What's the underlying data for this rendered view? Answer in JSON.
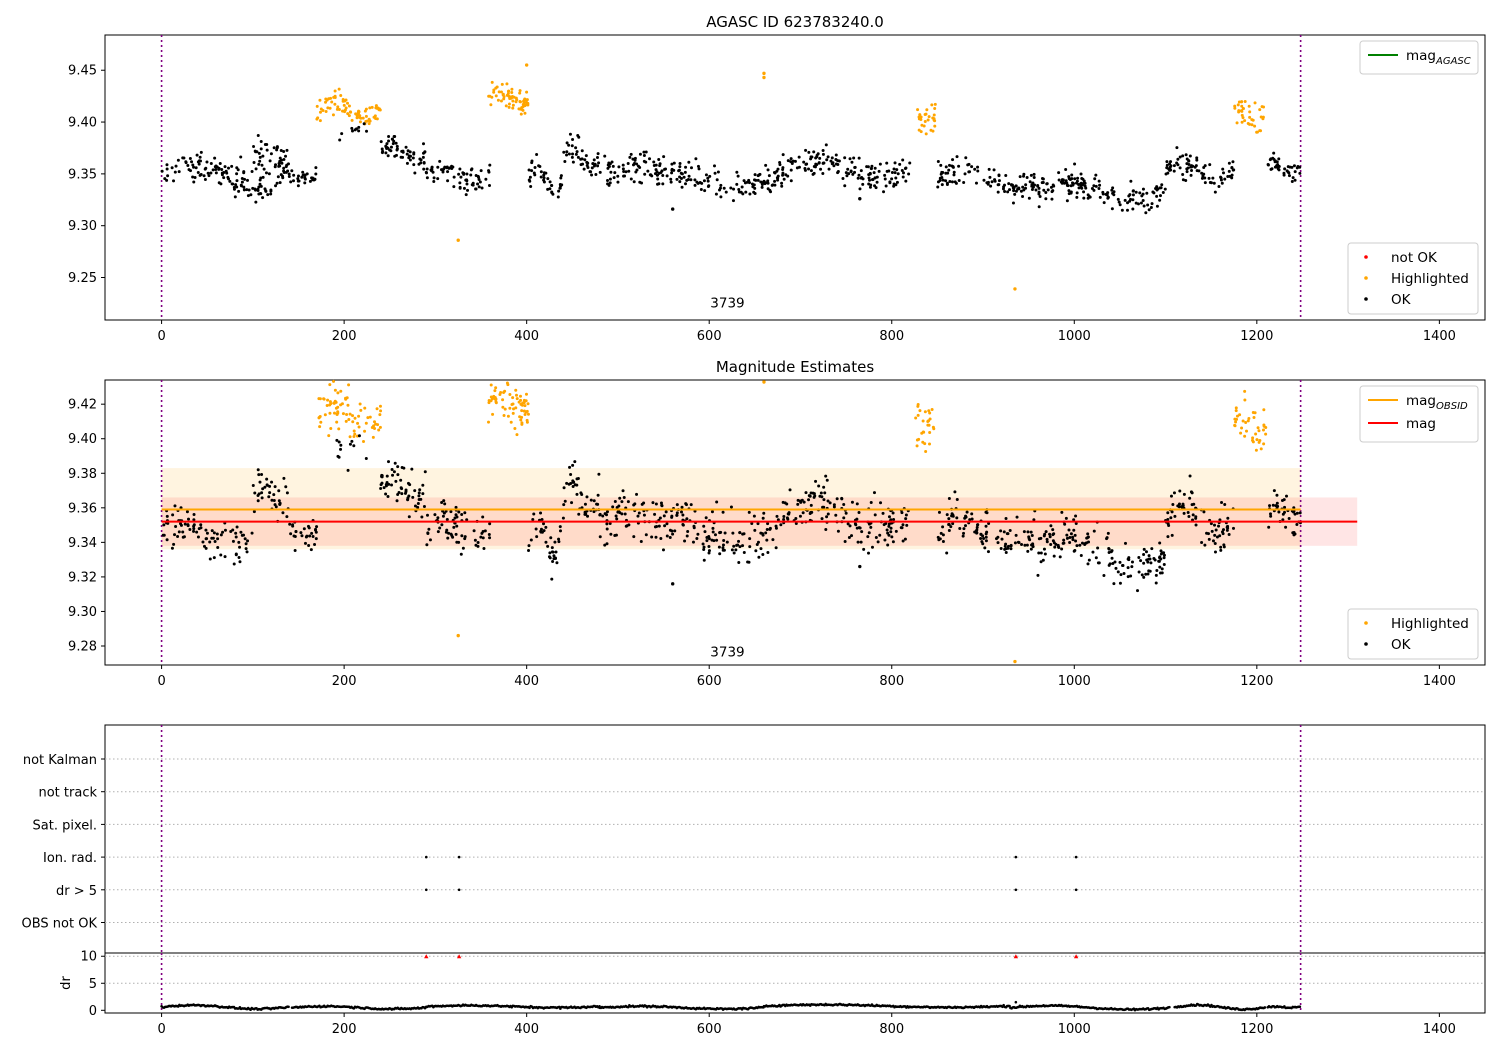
{
  "chart_data": [
    {
      "id": "top",
      "type": "scatter",
      "title": "AGASC ID 623783240.0",
      "xlim": [
        -62,
        1450
      ],
      "ylim": [
        9.209,
        9.484
      ],
      "xticks": [
        0,
        200,
        400,
        600,
        800,
        1000,
        1200,
        1400
      ],
      "yticks": [
        9.25,
        9.3,
        9.35,
        9.4,
        9.45
      ],
      "vlines": [
        0,
        1248
      ],
      "annotation": {
        "text": "3739",
        "x": 620,
        "y": 9.221
      },
      "legend_lines": [
        {
          "name": "mag_AGASC",
          "label": "mag",
          "sub": "AGASC",
          "color": "#008000"
        }
      ],
      "legend_points": [
        {
          "name": "not OK",
          "color": "#ff0000"
        },
        {
          "name": "Highlighted",
          "color": "#ffa500"
        },
        {
          "name": "OK",
          "color": "#000000"
        }
      ],
      "segments": [
        {
          "x0": 0,
          "x1": 135,
          "base": 9.347,
          "amp": 0.01,
          "noise": 0.008,
          "n": 110,
          "series": "OK"
        },
        {
          "x0": 40,
          "x1": 140,
          "base": 9.355,
          "amp": 0.0,
          "noise": 0.006,
          "n": 40,
          "series": "OK"
        },
        {
          "x0": 100,
          "x1": 140,
          "base": 9.372,
          "amp": 0.004,
          "noise": 0.007,
          "n": 30,
          "series": "OK"
        },
        {
          "x0": 138,
          "x1": 170,
          "base": 9.346,
          "amp": 0.0,
          "noise": 0.006,
          "n": 30,
          "series": "OK"
        },
        {
          "x0": 170,
          "x1": 240,
          "base": 9.412,
          "amp": 0.006,
          "noise": 0.007,
          "n": 80,
          "series": "Highlighted"
        },
        {
          "x0": 195,
          "x1": 225,
          "base": 9.393,
          "amp": 0.0,
          "noise": 0.006,
          "n": 10,
          "series": "OK"
        },
        {
          "x0": 240,
          "x1": 290,
          "base": 9.371,
          "amp": 0.006,
          "noise": 0.007,
          "n": 60,
          "series": "OK"
        },
        {
          "x0": 290,
          "x1": 360,
          "base": 9.348,
          "amp": 0.006,
          "noise": 0.008,
          "n": 70,
          "series": "OK"
        },
        {
          "x0": 358,
          "x1": 402,
          "base": 9.423,
          "amp": 0.006,
          "noise": 0.007,
          "n": 70,
          "series": "Highlighted"
        },
        {
          "x0": 402,
          "x1": 440,
          "base": 9.343,
          "amp": 0.01,
          "noise": 0.008,
          "n": 40,
          "series": "OK"
        },
        {
          "x0": 440,
          "x1": 480,
          "base": 9.365,
          "amp": 0.01,
          "noise": 0.008,
          "n": 45,
          "series": "OK"
        },
        {
          "x0": 480,
          "x1": 680,
          "base": 9.348,
          "amp": 0.007,
          "noise": 0.009,
          "n": 200,
          "series": "OK"
        },
        {
          "x0": 680,
          "x1": 820,
          "base": 9.355,
          "amp": 0.008,
          "noise": 0.009,
          "n": 150,
          "series": "OK"
        },
        {
          "x0": 825,
          "x1": 848,
          "base": 9.405,
          "amp": 0.0,
          "noise": 0.01,
          "n": 28,
          "series": "Highlighted"
        },
        {
          "x0": 850,
          "x1": 960,
          "base": 9.345,
          "amp": 0.008,
          "noise": 0.009,
          "n": 110,
          "series": "OK"
        },
        {
          "x0": 960,
          "x1": 1100,
          "base": 9.333,
          "amp": 0.008,
          "noise": 0.008,
          "n": 150,
          "series": "OK"
        },
        {
          "x0": 1100,
          "x1": 1175,
          "base": 9.352,
          "amp": 0.008,
          "noise": 0.008,
          "n": 80,
          "series": "OK"
        },
        {
          "x0": 1175,
          "x1": 1210,
          "base": 9.408,
          "amp": 0.006,
          "noise": 0.008,
          "n": 40,
          "series": "Highlighted"
        },
        {
          "x0": 1210,
          "x1": 1248,
          "base": 9.358,
          "amp": 0.004,
          "noise": 0.006,
          "n": 40,
          "series": "OK"
        }
      ],
      "extra_points": [
        {
          "x": 660,
          "y": 9.447,
          "series": "Highlighted"
        },
        {
          "x": 660,
          "y": 9.443,
          "series": "Highlighted"
        },
        {
          "x": 400,
          "y": 9.455,
          "series": "Highlighted"
        },
        {
          "x": 325,
          "y": 9.286,
          "series": "Highlighted"
        },
        {
          "x": 935,
          "y": 9.239,
          "series": "Highlighted"
        },
        {
          "x": 560,
          "y": 9.316,
          "series": "OK"
        },
        {
          "x": 765,
          "y": 9.326,
          "series": "OK"
        }
      ]
    },
    {
      "id": "mid",
      "type": "scatter",
      "title": "Magnitude Estimates",
      "xlim": [
        -62,
        1450
      ],
      "ylim": [
        9.269,
        9.434
      ],
      "xticks": [
        0,
        200,
        400,
        600,
        800,
        1000,
        1200,
        1400
      ],
      "yticks": [
        9.28,
        9.3,
        9.32,
        9.34,
        9.36,
        9.38,
        9.4,
        9.42
      ],
      "vlines": [
        0,
        1248
      ],
      "annotation": {
        "text": "3739",
        "x": 620,
        "y": 9.274
      },
      "bands": [
        {
          "x0": 0,
          "x1": 1248,
          "y0": 9.336,
          "y1": 9.383,
          "color": "#ffa500",
          "opacity": 0.12
        },
        {
          "x0": 0,
          "x1": 1310,
          "y0": 9.338,
          "y1": 9.366,
          "color": "#ff0000",
          "opacity": 0.1
        }
      ],
      "hlines": [
        {
          "name": "mag_OBSID",
          "x0": 0,
          "x1": 1248,
          "y": 9.359,
          "color": "#ffa500"
        },
        {
          "name": "mag",
          "x0": 0,
          "x1": 1310,
          "y": 9.352,
          "color": "#ff0000"
        }
      ],
      "legend_lines": [
        {
          "name": "mag_OBSID",
          "label": "mag",
          "sub": "OBSID",
          "color": "#ffa500"
        },
        {
          "name": "mag",
          "label": "mag",
          "sub": "",
          "color": "#ff0000"
        }
      ],
      "legend_points": [
        {
          "name": "Highlighted",
          "color": "#ffa500"
        },
        {
          "name": "OK",
          "color": "#000000"
        }
      ],
      "segments": [
        {
          "x0": 0,
          "x1": 100,
          "base": 9.344,
          "amp": 0.006,
          "noise": 0.008,
          "n": 90,
          "series": "OK"
        },
        {
          "x0": 100,
          "x1": 140,
          "base": 9.366,
          "amp": 0.006,
          "noise": 0.008,
          "n": 40,
          "series": "OK"
        },
        {
          "x0": 138,
          "x1": 170,
          "base": 9.344,
          "amp": 0.0,
          "noise": 0.006,
          "n": 30,
          "series": "OK"
        },
        {
          "x0": 170,
          "x1": 240,
          "base": 9.413,
          "amp": 0.006,
          "noise": 0.008,
          "n": 80,
          "series": "Highlighted"
        },
        {
          "x0": 190,
          "x1": 225,
          "base": 9.393,
          "amp": 0.0,
          "noise": 0.007,
          "n": 12,
          "series": "OK"
        },
        {
          "x0": 240,
          "x1": 290,
          "base": 9.372,
          "amp": 0.006,
          "noise": 0.007,
          "n": 60,
          "series": "OK"
        },
        {
          "x0": 290,
          "x1": 360,
          "base": 9.348,
          "amp": 0.006,
          "noise": 0.008,
          "n": 70,
          "series": "OK"
        },
        {
          "x0": 358,
          "x1": 402,
          "base": 9.421,
          "amp": 0.004,
          "noise": 0.008,
          "n": 70,
          "series": "Highlighted"
        },
        {
          "x0": 402,
          "x1": 440,
          "base": 9.342,
          "amp": 0.008,
          "noise": 0.008,
          "n": 40,
          "series": "OK"
        },
        {
          "x0": 440,
          "x1": 480,
          "base": 9.366,
          "amp": 0.01,
          "noise": 0.008,
          "n": 45,
          "series": "OK"
        },
        {
          "x0": 480,
          "x1": 680,
          "base": 9.349,
          "amp": 0.007,
          "noise": 0.009,
          "n": 200,
          "series": "OK"
        },
        {
          "x0": 680,
          "x1": 820,
          "base": 9.356,
          "amp": 0.008,
          "noise": 0.009,
          "n": 150,
          "series": "OK"
        },
        {
          "x0": 825,
          "x1": 848,
          "base": 9.408,
          "amp": 0.0,
          "noise": 0.01,
          "n": 28,
          "series": "Highlighted"
        },
        {
          "x0": 850,
          "x1": 960,
          "base": 9.346,
          "amp": 0.008,
          "noise": 0.009,
          "n": 110,
          "series": "OK"
        },
        {
          "x0": 960,
          "x1": 1100,
          "base": 9.334,
          "amp": 0.008,
          "noise": 0.008,
          "n": 150,
          "series": "OK"
        },
        {
          "x0": 1100,
          "x1": 1175,
          "base": 9.353,
          "amp": 0.008,
          "noise": 0.008,
          "n": 80,
          "series": "OK"
        },
        {
          "x0": 1175,
          "x1": 1210,
          "base": 9.408,
          "amp": 0.006,
          "noise": 0.008,
          "n": 40,
          "series": "Highlighted"
        },
        {
          "x0": 1210,
          "x1": 1248,
          "base": 9.357,
          "amp": 0.004,
          "noise": 0.007,
          "n": 40,
          "series": "OK"
        }
      ],
      "extra_points": [
        {
          "x": 660,
          "y": 9.433,
          "series": "Highlighted"
        },
        {
          "x": 325,
          "y": 9.286,
          "series": "Highlighted"
        },
        {
          "x": 935,
          "y": 9.271,
          "series": "Highlighted"
        },
        {
          "x": 560,
          "y": 9.316,
          "series": "OK"
        },
        {
          "x": 765,
          "y": 9.326,
          "series": "OK"
        }
      ]
    },
    {
      "id": "flags",
      "type": "scatter",
      "xlim": [
        -62,
        1450
      ],
      "categories": [
        "not Kalman",
        "not track",
        "Sat. pixel.",
        "Ion. rad.",
        "dr > 5",
        "OBS not OK"
      ],
      "vlines": [
        0,
        1248
      ],
      "points": [
        {
          "x": 290,
          "category": "Ion. rad."
        },
        {
          "x": 326,
          "category": "Ion. rad."
        },
        {
          "x": 936,
          "category": "Ion. rad."
        },
        {
          "x": 1002,
          "category": "Ion. rad."
        },
        {
          "x": 290,
          "category": "dr > 5"
        },
        {
          "x": 326,
          "category": "dr > 5"
        },
        {
          "x": 936,
          "category": "dr > 5"
        },
        {
          "x": 1002,
          "category": "dr > 5"
        }
      ]
    },
    {
      "id": "dr",
      "type": "line",
      "ylabel": "dr",
      "xlim": [
        -62,
        1450
      ],
      "ylim": [
        -0.5,
        10.6
      ],
      "xticks": [
        0,
        200,
        400,
        600,
        800,
        1000,
        1200,
        1400
      ],
      "yticks": [
        0,
        5,
        10
      ],
      "vlines": [
        0,
        1248
      ],
      "segments": [
        {
          "x0": 0,
          "x1": 140,
          "base": 0.6,
          "amp": 0.35
        },
        {
          "x0": 143,
          "x1": 290,
          "base": 0.5,
          "amp": 0.25
        },
        {
          "x0": 290,
          "x1": 480,
          "base": 0.7,
          "amp": 0.2
        },
        {
          "x0": 480,
          "x1": 660,
          "base": 0.5,
          "amp": 0.25
        },
        {
          "x0": 660,
          "x1": 930,
          "base": 0.8,
          "amp": 0.25
        },
        {
          "x0": 930,
          "x1": 1105,
          "base": 0.5,
          "amp": 0.35
        },
        {
          "x0": 1110,
          "x1": 1210,
          "base": 0.6,
          "amp": 0.4
        },
        {
          "x0": 1212,
          "x1": 1248,
          "base": 0.6,
          "amp": 0.1
        }
      ],
      "clipped_markers": [
        {
          "x": 290,
          "y": 10
        },
        {
          "x": 326,
          "y": 10
        },
        {
          "x": 936,
          "y": 10
        },
        {
          "x": 1002,
          "y": 10
        }
      ],
      "extra_points": [
        {
          "x": 936,
          "y": 1.5
        }
      ]
    }
  ]
}
